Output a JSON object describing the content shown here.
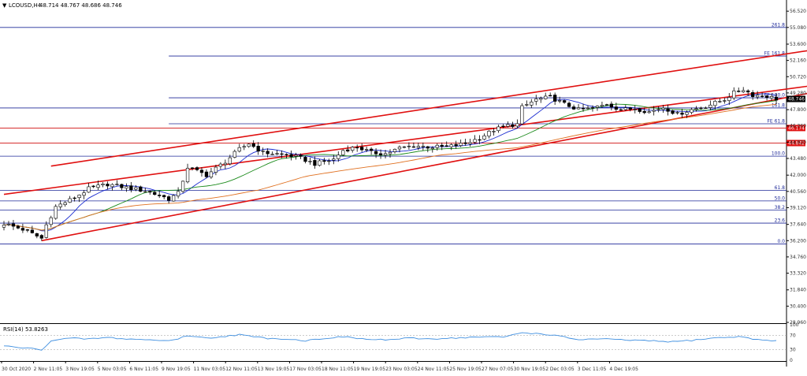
{
  "header": {
    "symbol": "LCOUSD,H4",
    "ohlc": "48.714 48.767 48.686 48.746",
    "triangle": "▼"
  },
  "rsi_panel": {
    "title": "RSI(14) 53.8263"
  },
  "colors": {
    "background": "#ffffff",
    "bull_candle": "#ffffff",
    "bear_candle": "#000000",
    "channel": "#e01010",
    "fib_line": "#1f2a99",
    "support_line": "#d01010",
    "ma_fast": "#1a2bd0",
    "ma_mid": "#1a8a1a",
    "ma_slow": "#e07020",
    "rsi_line": "#3f8fe0",
    "price_badge": "#000000",
    "level_badge": "#e01010"
  },
  "chart_data": {
    "type": "candlestick",
    "symbol": "LCOUSD",
    "timeframe": "H4",
    "ylim": [
      28.96,
      57.3
    ],
    "y_ticks": [
      56.52,
      55.08,
      53.6,
      52.16,
      50.72,
      49.28,
      47.8,
      46.36,
      44.92,
      43.48,
      42.0,
      40.56,
      39.12,
      37.64,
      36.2,
      34.76,
      33.32,
      31.84,
      30.4,
      28.96
    ],
    "x_tick_labels": [
      "30 Oct 2020",
      "2 Nov 11:05",
      "3 Nov 19:05",
      "5 Nov 03:05",
      "6 Nov 11:05",
      "9 Nov 19:05",
      "11 Nov 03:05",
      "12 Nov 11:05",
      "13 Nov 19:05",
      "17 Nov 03:05",
      "18 Nov 11:05",
      "19 Nov 19:05",
      "23 Nov 03:05",
      "24 Nov 11:05",
      "25 Nov 19:05",
      "27 Nov 07:05",
      "30 Nov 19:05",
      "2 Dec 03:05",
      "3 Dec 11:05",
      "4 Dec 19:05"
    ],
    "current_price": "48.746",
    "close_anchors": [
      [
        0,
        37.7
      ],
      [
        4,
        37.2
      ],
      [
        8,
        36.4
      ],
      [
        9,
        37.6
      ],
      [
        11,
        39.2
      ],
      [
        15,
        40.0
      ],
      [
        18,
        40.8
      ],
      [
        22,
        41.2
      ],
      [
        26,
        40.9
      ],
      [
        30,
        40.6
      ],
      [
        33,
        40.2
      ],
      [
        35,
        39.9
      ],
      [
        37,
        40.4
      ],
      [
        39,
        42.7
      ],
      [
        43,
        42.0
      ],
      [
        47,
        43.2
      ],
      [
        50,
        44.3
      ],
      [
        52,
        44.8
      ],
      [
        55,
        44.0
      ],
      [
        60,
        43.8
      ],
      [
        63,
        43.5
      ],
      [
        66,
        43.0
      ],
      [
        70,
        43.4
      ],
      [
        72,
        44.2
      ],
      [
        75,
        44.5
      ],
      [
        78,
        44.0
      ],
      [
        81,
        43.9
      ],
      [
        84,
        44.4
      ],
      [
        87,
        44.6
      ],
      [
        90,
        44.5
      ],
      [
        94,
        44.5
      ],
      [
        98,
        44.8
      ],
      [
        101,
        45.3
      ],
      [
        104,
        46.0
      ],
      [
        107,
        46.4
      ],
      [
        109,
        46.5
      ],
      [
        110,
        48.0
      ],
      [
        113,
        48.7
      ],
      [
        116,
        48.9
      ],
      [
        119,
        48.3
      ],
      [
        122,
        47.8
      ],
      [
        125,
        47.9
      ],
      [
        128,
        48.3
      ],
      [
        131,
        47.8
      ],
      [
        134,
        47.9
      ],
      [
        137,
        47.6
      ],
      [
        140,
        48.0
      ],
      [
        143,
        47.4
      ],
      [
        146,
        47.8
      ],
      [
        149,
        48.1
      ],
      [
        151,
        48.4
      ],
      [
        153,
        48.7
      ],
      [
        155,
        49.3
      ],
      [
        157,
        49.6
      ],
      [
        159,
        49.1
      ],
      [
        162,
        49.0
      ],
      [
        164,
        48.75
      ]
    ],
    "moving_averages": [
      {
        "color": "#1a2bd0",
        "period": 8
      },
      {
        "color": "#1a8a1a",
        "period": 21
      },
      {
        "color": "#e07020",
        "period": 55
      }
    ],
    "channel_lines": [
      {
        "p1": [
          0,
          40.3
        ],
        "p2": [
          164,
          49.5
        ],
        "ext": 208
      },
      {
        "p1": [
          10,
          42.8
        ],
        "p2": [
          164,
          52.6
        ],
        "ext": 208
      },
      {
        "p1": [
          8,
          36.2
        ],
        "p2": [
          164,
          48.7
        ],
        "ext": 208
      }
    ],
    "fibonacci_levels": [
      {
        "label": "261.8",
        "value": 55.08,
        "from": 0
      },
      {
        "label": "FE 161.8",
        "value": 52.55,
        "from": 35
      },
      {
        "label": "FE 100.0",
        "value": 48.85,
        "from": 35
      },
      {
        "label": "161.8",
        "value": 47.95,
        "from": 0
      },
      {
        "label": "FE 61.8",
        "value": 46.55,
        "from": 35
      },
      {
        "label": "100.0",
        "value": 43.68,
        "from": 0
      },
      {
        "label": "61.8",
        "value": 40.65,
        "from": 0
      },
      {
        "label": "50.0",
        "value": 39.72,
        "from": 0
      },
      {
        "label": "38.2",
        "value": 38.9,
        "from": 0
      },
      {
        "label": "23.6",
        "value": 37.75,
        "from": 0
      },
      {
        "label": "0.0",
        "value": 35.9,
        "from": 0
      }
    ],
    "level_lines": [
      {
        "value": 46.174,
        "label": "46.174"
      },
      {
        "value": 44.842,
        "label": "44.842"
      }
    ],
    "rsi": {
      "period": 14,
      "value": 53.8263,
      "levels": [
        70,
        30
      ],
      "ylim": [
        0,
        100
      ],
      "ticks": [
        "100",
        "70",
        "30",
        "0"
      ],
      "series": [
        [
          0,
          40
        ],
        [
          4,
          35
        ],
        [
          8,
          30
        ],
        [
          10,
          55
        ],
        [
          14,
          62
        ],
        [
          18,
          60
        ],
        [
          22,
          64
        ],
        [
          26,
          60
        ],
        [
          30,
          58
        ],
        [
          34,
          55
        ],
        [
          37,
          60
        ],
        [
          39,
          70
        ],
        [
          43,
          62
        ],
        [
          47,
          68
        ],
        [
          50,
          72
        ],
        [
          53,
          66
        ],
        [
          56,
          62
        ],
        [
          60,
          60
        ],
        [
          64,
          55
        ],
        [
          68,
          62
        ],
        [
          72,
          66
        ],
        [
          75,
          62
        ],
        [
          78,
          58
        ],
        [
          82,
          58
        ],
        [
          86,
          62
        ],
        [
          90,
          60
        ],
        [
          94,
          62
        ],
        [
          98,
          64
        ],
        [
          102,
          66
        ],
        [
          106,
          65
        ],
        [
          110,
          78
        ],
        [
          113,
          75
        ],
        [
          116,
          72
        ],
        [
          119,
          65
        ],
        [
          122,
          58
        ],
        [
          126,
          60
        ],
        [
          130,
          58
        ],
        [
          134,
          56
        ],
        [
          138,
          54
        ],
        [
          142,
          52
        ],
        [
          146,
          56
        ],
        [
          150,
          62
        ],
        [
          154,
          65
        ],
        [
          157,
          66
        ],
        [
          160,
          58
        ],
        [
          164,
          53.8
        ]
      ]
    }
  }
}
